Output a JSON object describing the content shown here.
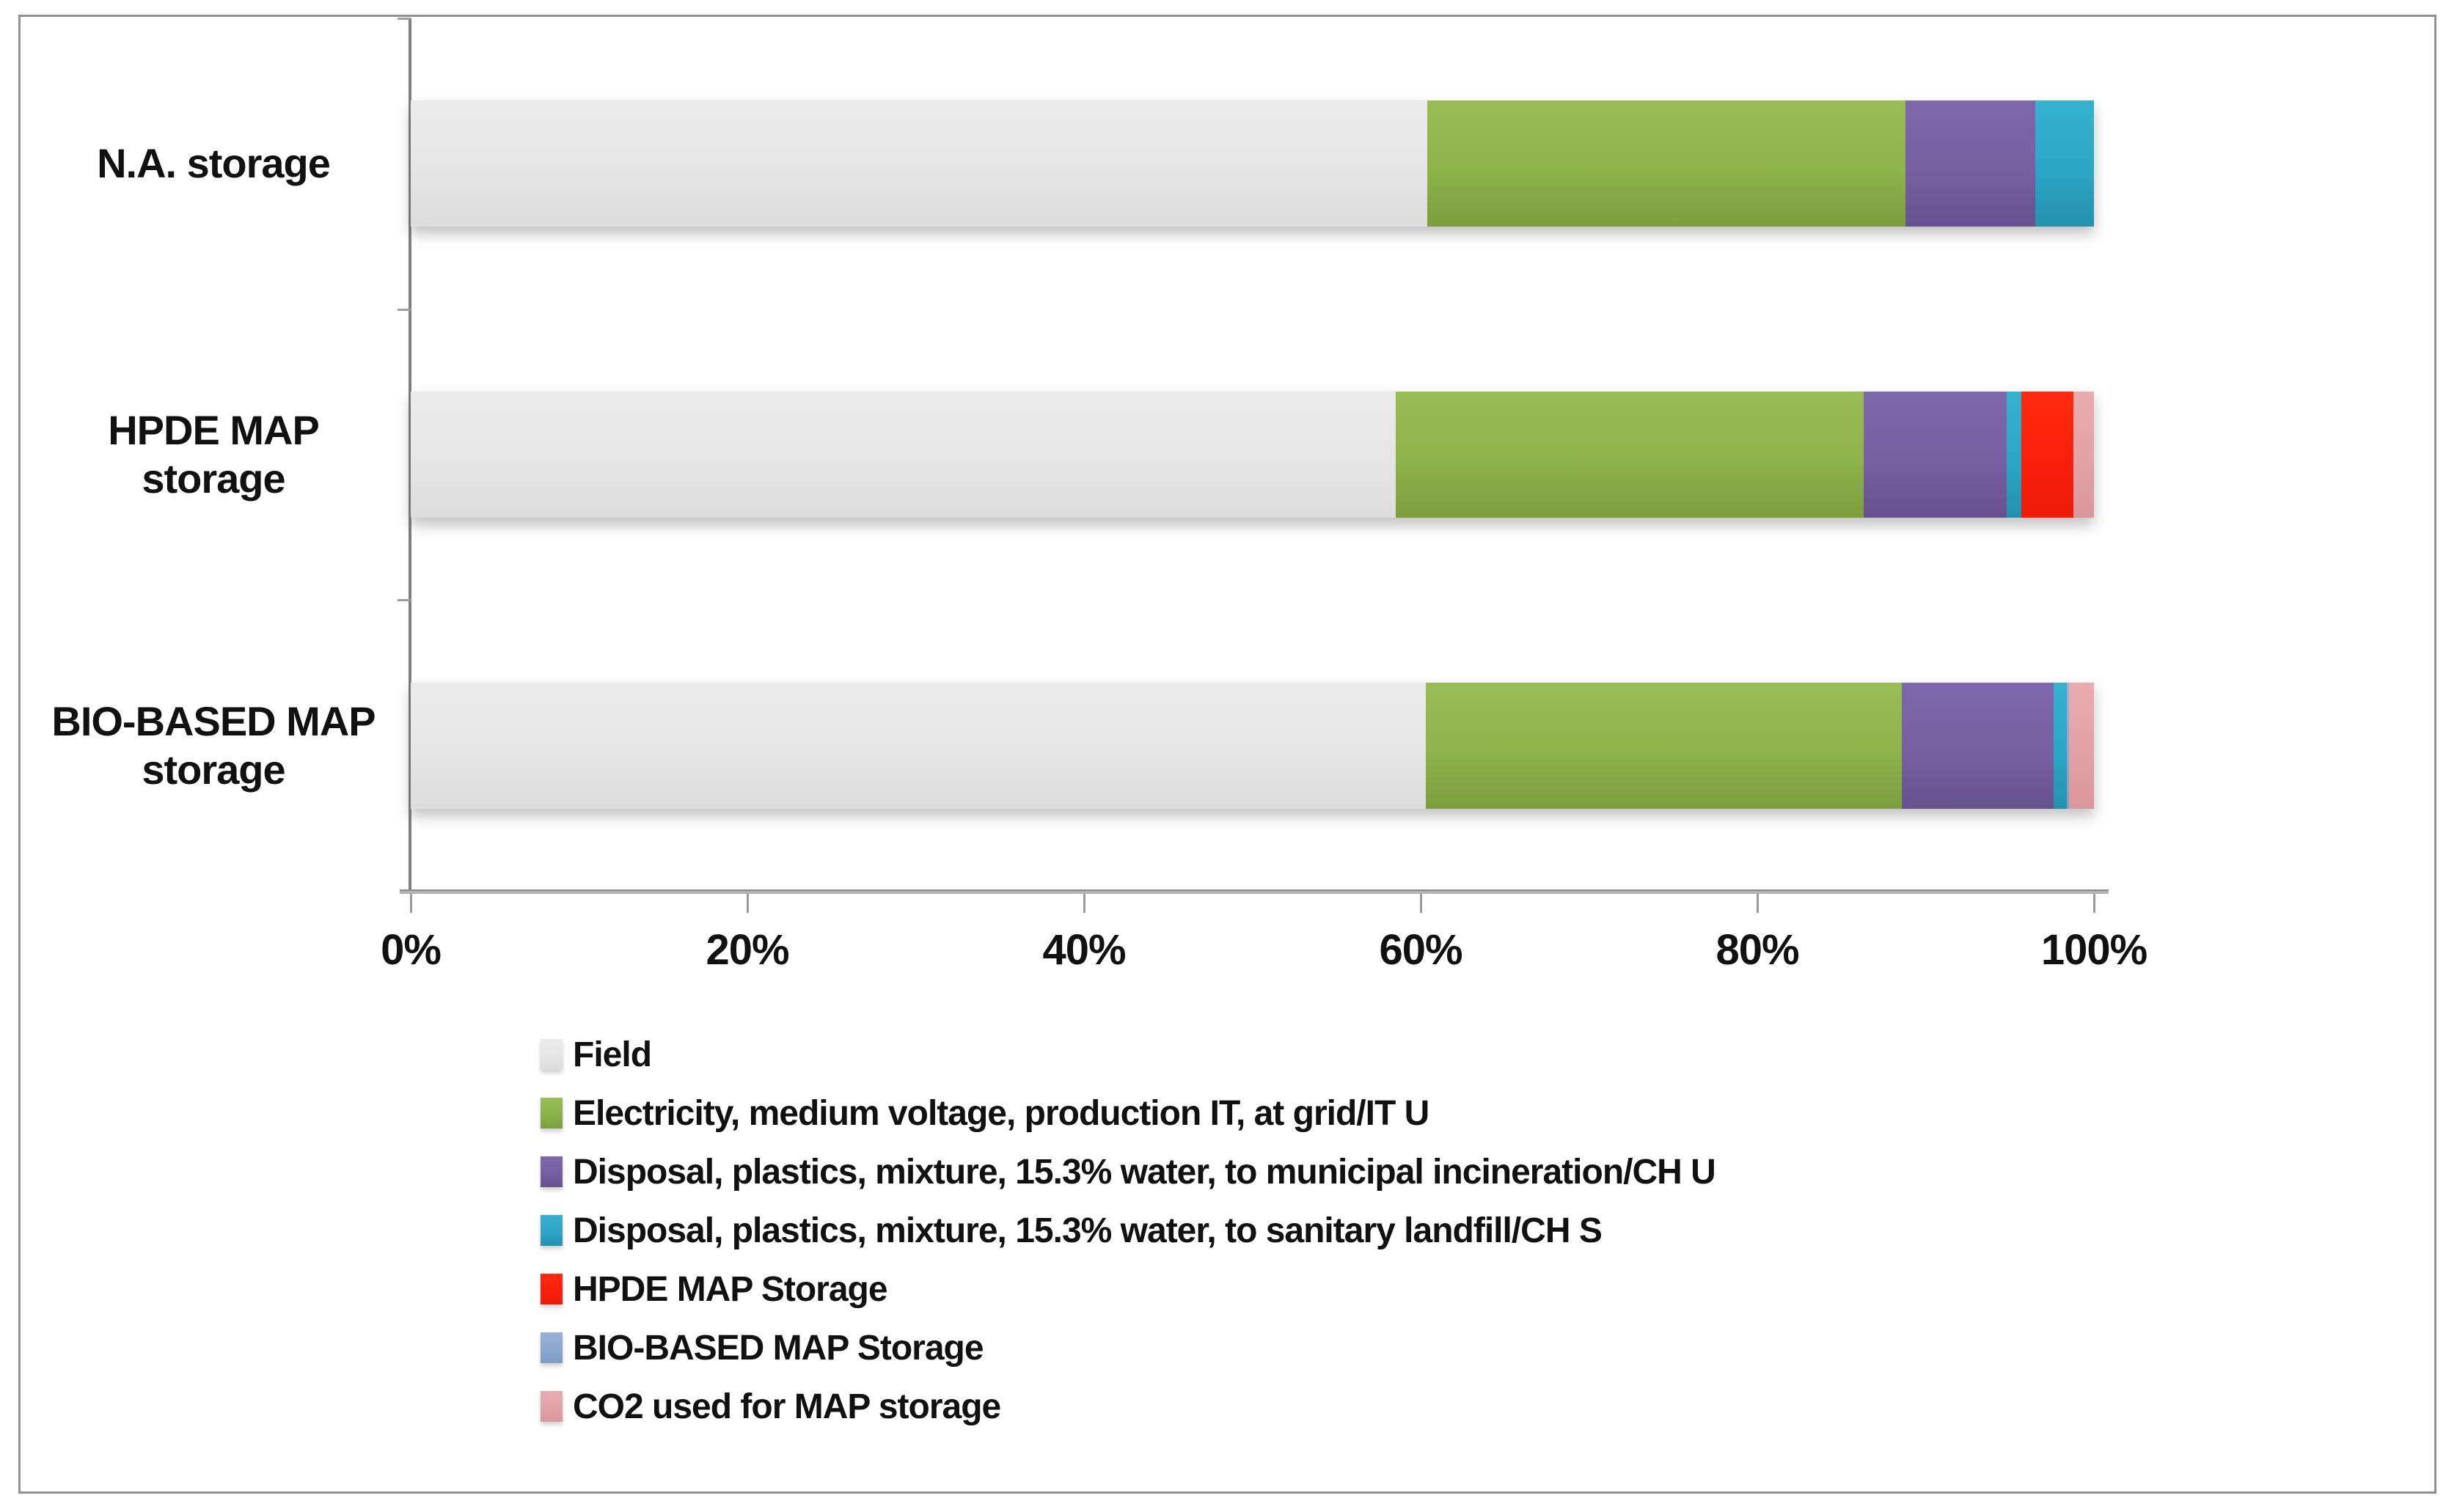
{
  "chart_data": {
    "type": "bar",
    "orientation": "horizontal",
    "stacked": true,
    "units": "%",
    "title": "",
    "xlabel": "",
    "ylabel": "",
    "x_axis": {
      "min": 0,
      "max": 100,
      "tick_step": 20,
      "tick_labels": [
        "0%",
        "20%",
        "40%",
        "60%",
        "80%",
        "100%"
      ]
    },
    "grid": false,
    "legend_position": "bottom-left",
    "categories": [
      "N.A. storage",
      "HPDE MAP\nstorage",
      "BIO-BASED MAP\nstorage"
    ],
    "series": [
      {
        "name": "Field",
        "color": "#e5e5e5",
        "color_top": "#ebebeb",
        "color_bottom": "#dcdcdc",
        "values": [
          60.4,
          58.5,
          60.3
        ]
      },
      {
        "name": "Electricity, medium voltage, production IT, at grid/IT U",
        "color": "#8db34a",
        "color_top": "#98bd55",
        "color_bottom": "#7b9e3e",
        "values": [
          28.4,
          27.8,
          28.3
        ]
      },
      {
        "name": "Disposal, plastics, mixture, 15.3% water, to municipal incineration/CH U",
        "color": "#7660a2",
        "color_top": "#7e68ac",
        "color_bottom": "#66528e",
        "values": [
          7.7,
          8.5,
          9.0
        ]
      },
      {
        "name": "Disposal, plastics, mixture, 15.3% water, to sanitary landfill/CH S",
        "color": "#2da6c5",
        "color_top": "#36b1cf",
        "color_bottom": "#2391ae",
        "values": [
          3.5,
          0.9,
          0.8
        ]
      },
      {
        "name": "HPDE MAP Storage",
        "color": "#fb1f0c",
        "color_top": "#ff2a10",
        "color_bottom": "#ec1a08",
        "values": [
          0,
          3.1,
          0
        ]
      },
      {
        "name": "BIO-BASED MAP Storage",
        "color": "#8ca7d0",
        "color_top": "#97b1d8",
        "color_bottom": "#7f9cc6",
        "values": [
          0,
          0,
          0.1
        ]
      },
      {
        "name": "CO2 used for MAP storage",
        "color": "#e2a2a5",
        "color_top": "#e9acae",
        "color_bottom": "#d99799",
        "values": [
          0,
          1.2,
          1.5
        ]
      }
    ]
  }
}
